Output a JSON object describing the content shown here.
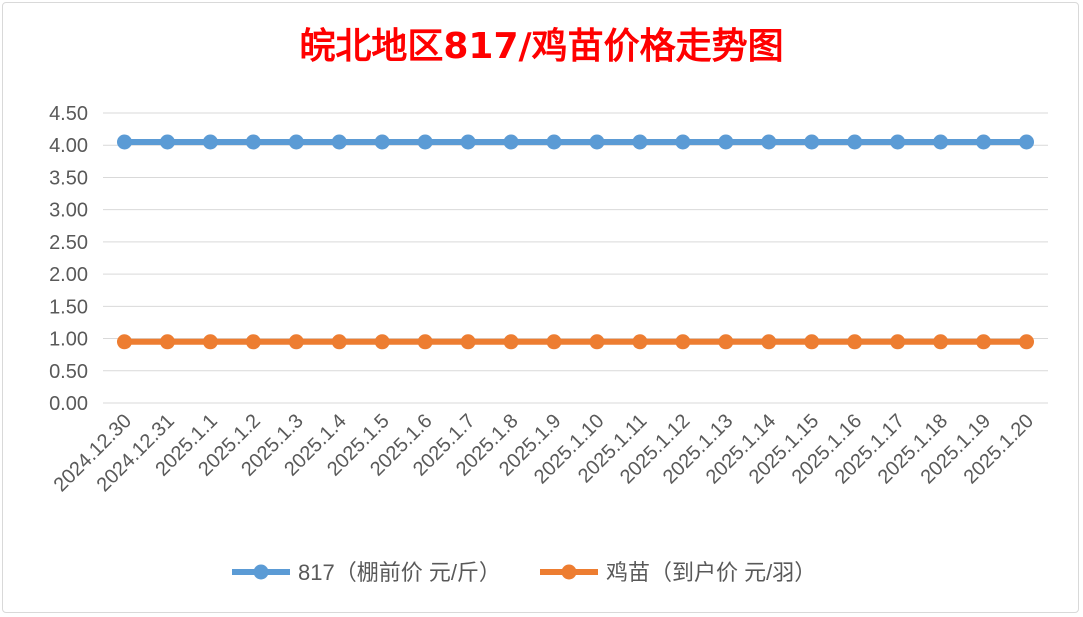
{
  "chart_data": {
    "type": "line",
    "title": "皖北地区817/鸡苗价格走势图",
    "categories": [
      "2024.12.30",
      "2024.12.31",
      "2025.1.1",
      "2025.1.2",
      "2025.1.3",
      "2025.1.4",
      "2025.1.5",
      "2025.1.6",
      "2025.1.7",
      "2025.1.8",
      "2025.1.9",
      "2025.1.10",
      "2025.1.11",
      "2025.1.12",
      "2025.1.13",
      "2025.1.14",
      "2025.1.15",
      "2025.1.16",
      "2025.1.17",
      "2025.1.18",
      "2025.1.19",
      "2025.1.20"
    ],
    "series": [
      {
        "name": "817（棚前价 元/斤）",
        "color": "#5b9bd5",
        "values": [
          4.05,
          4.05,
          4.05,
          4.05,
          4.05,
          4.05,
          4.05,
          4.05,
          4.05,
          4.05,
          4.05,
          4.05,
          4.05,
          4.05,
          4.05,
          4.05,
          4.05,
          4.05,
          4.05,
          4.05,
          4.05,
          4.05
        ]
      },
      {
        "name": "鸡苗（到户价 元/羽）",
        "color": "#ed7d31",
        "values": [
          0.95,
          0.95,
          0.95,
          0.95,
          0.95,
          0.95,
          0.95,
          0.95,
          0.95,
          0.95,
          0.95,
          0.95,
          0.95,
          0.95,
          0.95,
          0.95,
          0.95,
          0.95,
          0.95,
          0.95,
          0.95,
          0.95
        ]
      }
    ],
    "yticks": [
      "0.00",
      "0.50",
      "1.00",
      "1.50",
      "2.00",
      "2.50",
      "3.00",
      "3.50",
      "4.00",
      "4.50"
    ],
    "ylim": [
      0,
      4.5
    ],
    "grid": true,
    "legend_position": "bottom"
  }
}
